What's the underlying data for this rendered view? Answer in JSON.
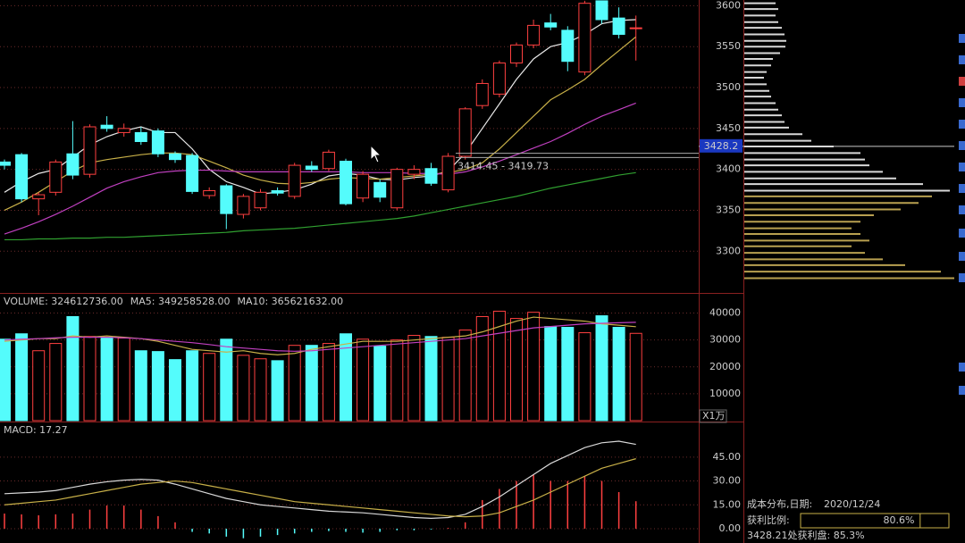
{
  "chart_data": [
    {
      "type": "candlestick",
      "ylim": [
        3249,
        3607
      ],
      "yticks": [
        3300,
        3350,
        3400,
        3450,
        3500,
        3550,
        3600
      ],
      "grid": true,
      "up_color": "#ff4040",
      "down_color": "#54fcfc",
      "ohlc": [
        [
          3409,
          3412,
          3400,
          3405
        ],
        [
          3418,
          3420,
          3360,
          3364
        ],
        [
          3364,
          3372,
          3344,
          3369
        ],
        [
          3372,
          3412,
          3368,
          3409
        ],
        [
          3419,
          3459,
          3388,
          3393
        ],
        [
          3394,
          3455,
          3390,
          3452
        ],
        [
          3454,
          3465,
          3446,
          3450
        ],
        [
          3445,
          3456,
          3440,
          3450
        ],
        [
          3445,
          3452,
          3430,
          3434
        ],
        [
          3447,
          3450,
          3415,
          3419
        ],
        [
          3419,
          3422,
          3408,
          3412
        ],
        [
          3417,
          3420,
          3370,
          3373
        ],
        [
          3368,
          3378,
          3364,
          3374
        ],
        [
          3380,
          3382,
          3327,
          3346
        ],
        [
          3345,
          3370,
          3340,
          3367
        ],
        [
          3353,
          3376,
          3350,
          3372
        ],
        [
          3374,
          3378,
          3368,
          3371
        ],
        [
          3367,
          3408,
          3364,
          3405
        ],
        [
          3404,
          3410,
          3397,
          3400
        ],
        [
          3401,
          3424,
          3398,
          3421
        ],
        [
          3410,
          3413,
          3356,
          3358
        ],
        [
          3365,
          3398,
          3360,
          3394
        ],
        [
          3384,
          3388,
          3360,
          3366
        ],
        [
          3353,
          3402,
          3350,
          3400
        ],
        [
          3394,
          3405,
          3388,
          3400
        ],
        [
          3401,
          3408,
          3380,
          3383
        ],
        [
          3375,
          3420,
          3372,
          3416
        ],
        [
          3416,
          3476,
          3412,
          3474
        ],
        [
          3478,
          3510,
          3474,
          3505
        ],
        [
          3492,
          3533,
          3488,
          3530
        ],
        [
          3530,
          3555,
          3525,
          3552
        ],
        [
          3552,
          3583,
          3548,
          3576
        ],
        [
          3579,
          3590,
          3570,
          3574
        ],
        [
          3570,
          3575,
          3520,
          3532
        ],
        [
          3519,
          3606,
          3515,
          3603
        ],
        [
          3606,
          3606,
          3578,
          3583
        ],
        [
          3585,
          3598,
          3560,
          3565
        ],
        [
          3572,
          3588,
          3533,
          3573
        ]
      ],
      "series": [
        {
          "color": "#e8e8e8",
          "values": [
            3372,
            3385,
            3395,
            3400,
            3415,
            3430,
            3440,
            3447,
            3452,
            3445,
            3445,
            3425,
            3400,
            3385,
            3378,
            3370,
            3372,
            3375,
            3382,
            3392,
            3395,
            3393,
            3388,
            3387,
            3390,
            3392,
            3398,
            3420,
            3450,
            3480,
            3510,
            3535,
            3550,
            3555,
            3565,
            3578,
            3582,
            3583
          ]
        },
        {
          "color": "#c8b048",
          "values": [
            3350,
            3360,
            3372,
            3385,
            3398,
            3408,
            3412,
            3415,
            3418,
            3420,
            3420,
            3418,
            3410,
            3402,
            3393,
            3387,
            3383,
            3382,
            3384,
            3388,
            3390,
            3389,
            3388,
            3390,
            3392,
            3394,
            3396,
            3400,
            3408,
            3425,
            3445,
            3465,
            3485,
            3497,
            3510,
            3528,
            3545,
            3562
          ]
        },
        {
          "color": "#c040c0",
          "values": [
            3321,
            3328,
            3336,
            3345,
            3355,
            3366,
            3377,
            3385,
            3391,
            3396,
            3398,
            3399,
            3399,
            3398,
            3397,
            3397,
            3397,
            3397,
            3397,
            3397,
            3397,
            3396,
            3396,
            3396,
            3395,
            3395,
            3394,
            3397,
            3403,
            3410,
            3418,
            3426,
            3434,
            3444,
            3455,
            3465,
            3473,
            3481
          ]
        },
        {
          "color": "#30a030",
          "values": [
            3314,
            3314,
            3315,
            3315,
            3316,
            3316,
            3317,
            3317,
            3318,
            3319,
            3320,
            3321,
            3322,
            3323,
            3325,
            3326,
            3327,
            3328,
            3330,
            3332,
            3334,
            3336,
            3338,
            3340,
            3343,
            3347,
            3351,
            3355,
            3359,
            3363,
            3367,
            3372,
            3377,
            3381,
            3385,
            3389,
            3393,
            3396
          ]
        }
      ],
      "cursor_price": 3428.2,
      "range_band": [
        3414.45,
        3419.73
      ],
      "range_label": "3414.45 - 3419.73"
    },
    {
      "type": "volume",
      "header": [
        {
          "text": "VOLUME: 324612736.00",
          "color": "#e8e8e8"
        },
        {
          "text": "MA5: 349258528.00",
          "color": "#e8e8e8"
        },
        {
          "text": "MA10: 365621632.00",
          "color": "#e040e0"
        }
      ],
      "unit_label": "X1万",
      "ylim": [
        0,
        45500
      ],
      "yticks": [
        10000,
        20000,
        30000,
        40000
      ],
      "grid": true,
      "values": [
        30300,
        32300,
        26000,
        28700,
        38700,
        31300,
        31000,
        30700,
        26000,
        25700,
        22700,
        26000,
        25000,
        30300,
        24300,
        23000,
        22300,
        28000,
        28000,
        28700,
        32300,
        30300,
        27700,
        30000,
        31700,
        31300,
        31000,
        33700,
        38700,
        40700,
        38000,
        40300,
        35000,
        34700,
        32700,
        39000,
        34700,
        32461
      ],
      "series": [
        {
          "color": "#c8b048",
          "values": [
            29500,
            30000,
            30500,
            30500,
            31500,
            31000,
            31500,
            31000,
            30500,
            29500,
            28000,
            26500,
            26000,
            25500,
            26000,
            25000,
            24500,
            25000,
            26500,
            27500,
            28500,
            29500,
            29500,
            29500,
            30000,
            30500,
            31000,
            31500,
            33000,
            35000,
            37000,
            38500,
            38000,
            37500,
            37000,
            36000,
            35500,
            34926
          ]
        },
        {
          "color": "#c040c0",
          "values": [
            30000,
            30300,
            30500,
            30800,
            31000,
            31000,
            31000,
            30800,
            30500,
            30000,
            29500,
            29000,
            28300,
            27500,
            27000,
            26500,
            26000,
            25800,
            26000,
            26500,
            27000,
            27500,
            28000,
            28500,
            29000,
            29500,
            30000,
            30500,
            31500,
            32500,
            33500,
            34500,
            35000,
            35500,
            36000,
            36200,
            36400,
            36562
          ]
        }
      ]
    },
    {
      "type": "macd",
      "header": [
        {
          "text": "MACD: 17.27",
          "color": "#e040e0"
        }
      ],
      "ylim": [
        -9,
        64
      ],
      "yticks": [
        {
          "value": 0,
          "label": "0.00"
        },
        {
          "value": 15,
          "label": "15.00"
        },
        {
          "value": 30,
          "label": "30.00"
        },
        {
          "value": 45,
          "label": "45.00"
        }
      ],
      "grid": true,
      "values": [
        9.5,
        9,
        8.4,
        9,
        9.5,
        12,
        14.6,
        14.6,
        12,
        7.9,
        4,
        -2,
        -3,
        -5,
        -6,
        -5,
        -4,
        -3,
        -2,
        -1.5,
        -2,
        -2.5,
        -2,
        -1,
        -1,
        -0.5,
        0.5,
        4,
        18,
        25,
        30,
        34,
        30,
        30,
        33,
        30,
        23,
        17.27
      ],
      "series": [
        {
          "color": "#d8d8d8",
          "values": [
            22,
            22.5,
            23,
            24,
            26,
            28,
            29.5,
            30.5,
            31,
            30.5,
            28,
            25,
            22,
            19,
            17,
            15,
            14,
            13,
            12,
            11,
            10.5,
            10,
            9,
            8,
            7,
            6.5,
            7,
            9,
            14,
            20,
            27,
            34,
            41,
            46,
            51,
            54,
            55,
            53
          ]
        },
        {
          "color": "#c8b048",
          "values": [
            15,
            16,
            17,
            18,
            20,
            22,
            24,
            26,
            28,
            29,
            30,
            29,
            27,
            25,
            23,
            21,
            19,
            17,
            16,
            15,
            14,
            13,
            12,
            11,
            10,
            9,
            8,
            7.5,
            8,
            10,
            14,
            18,
            23,
            28,
            33,
            38,
            41,
            44
          ]
        }
      ]
    },
    {
      "type": "chip",
      "prices": [
        3603,
        3596,
        3588,
        3580,
        3573,
        3565,
        3557,
        3550,
        3542,
        3535,
        3527,
        3519,
        3512,
        3504,
        3496,
        3489,
        3481,
        3473,
        3466,
        3458,
        3451,
        3443,
        3435,
        3428,
        3420,
        3412,
        3405,
        3397,
        3389,
        3382,
        3374,
        3367,
        3359,
        3351,
        3344,
        3336,
        3328,
        3321,
        3313,
        3306,
        3298,
        3290,
        3283,
        3275,
        3267
      ],
      "values": [
        35,
        38,
        35,
        38,
        42,
        45,
        47,
        46,
        40,
        32,
        30,
        25,
        22,
        25,
        28,
        30,
        35,
        38,
        42,
        45,
        50,
        65,
        75,
        100,
        130,
        135,
        140,
        155,
        170,
        200,
        230,
        210,
        195,
        175,
        145,
        130,
        120,
        130,
        140,
        120,
        135,
        155,
        180,
        220,
        235
      ],
      "colors": [
        "#d8d8d8",
        "#d8d8d8",
        "#d8d8d8",
        "#d8d8d8",
        "#d8d8d8",
        "#d8d8d8",
        "#d8d8d8",
        "#d8d8d8",
        "#d8d8d8",
        "#d8d8d8",
        "#d8d8d8",
        "#d8d8d8",
        "#d8d8d8",
        "#d8d8d8",
        "#d8d8d8",
        "#d8d8d8",
        "#d8d8d8",
        "#d8d8d8",
        "#d8d8d8",
        "#d8d8d8",
        "#d8d8d8",
        "#d8d8d8",
        "#d8d8d8",
        "#d8d8d8",
        "#d8d8d8",
        "#d8d8d8",
        "#d8d8d8",
        "#d8d8d8",
        "#d8d8d8",
        "#d8d8d8",
        "#d8d8d8",
        "#b8a050",
        "#b8a050",
        "#b8a050",
        "#b8a050",
        "#b8a050",
        "#b8a050",
        "#b8a050",
        "#b8a050",
        "#b8a050",
        "#b8a050",
        "#b8a050",
        "#b8a050",
        "#b8a050",
        "#b8a050"
      ],
      "title": "成本分布,日期:",
      "date": "2020/12/24",
      "profit_label": "获利比例:",
      "profit_ratio": 80.6,
      "profit_ratio_label": "80.6%",
      "note": "3428.21处获利盘: 85.3%"
    }
  ]
}
